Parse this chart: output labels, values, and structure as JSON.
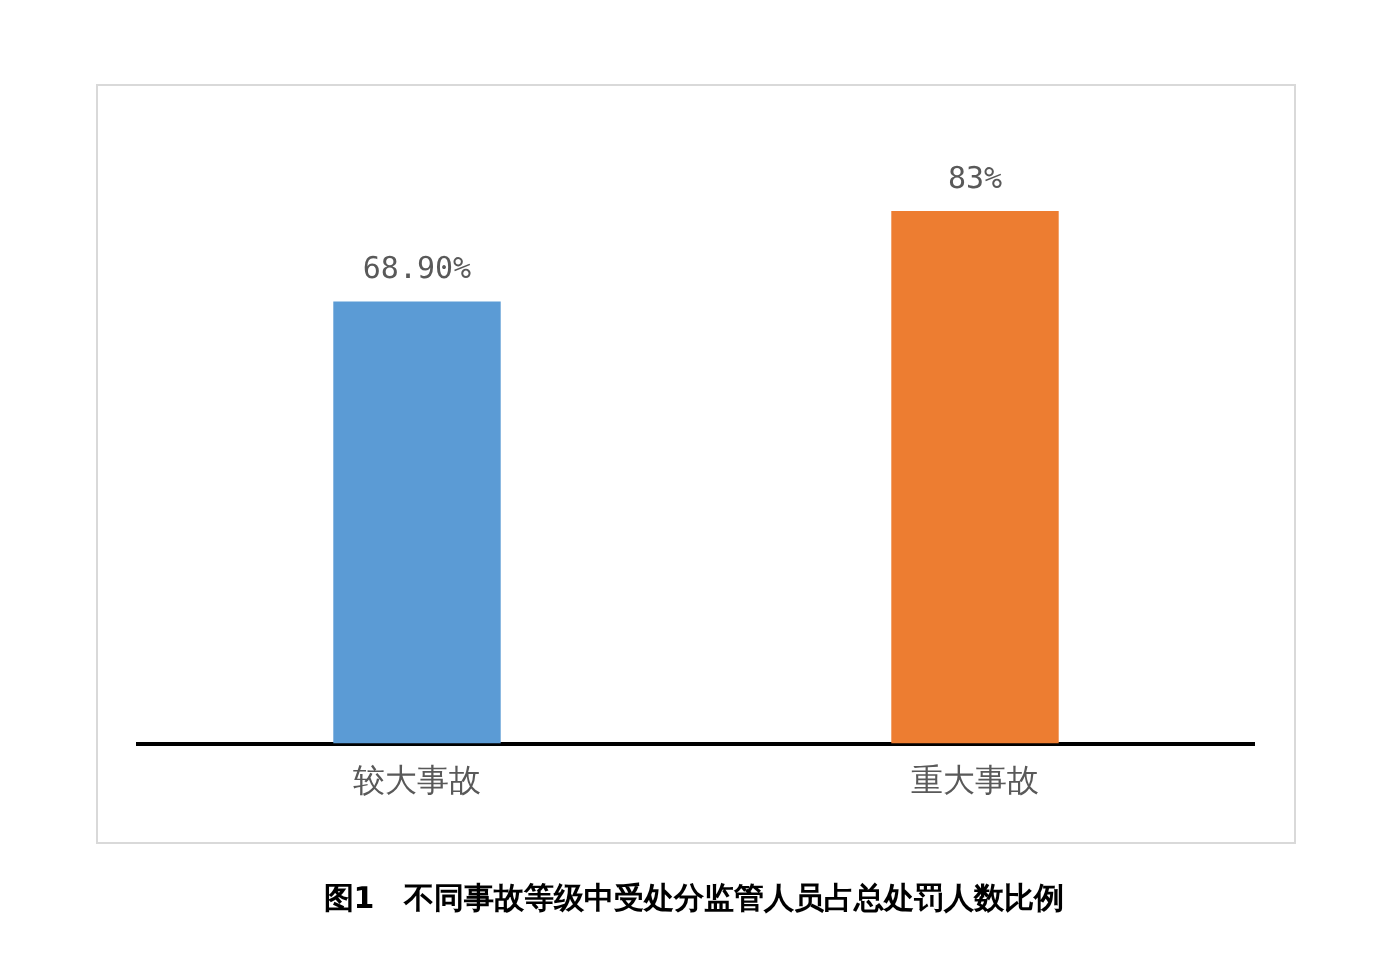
{
  "chart_data": {
    "type": "bar",
    "title": "图1　不同事故等级中受处分监管人员占总处罚人数比例",
    "categories": [
      "较大事故",
      "重大事故"
    ],
    "values": [
      68.9,
      83
    ],
    "colors": [
      "#5b9bd5",
      "#ed7d31"
    ],
    "value_labels": [
      "68.90%",
      "83%"
    ],
    "legend": false,
    "grid": false
  }
}
